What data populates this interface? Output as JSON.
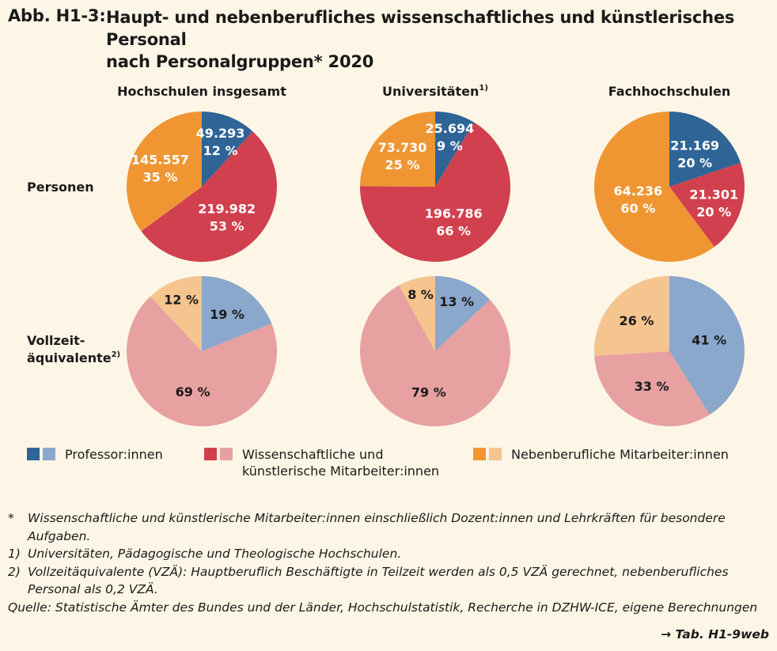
{
  "figure": {
    "label": "Abb. H1-3:",
    "title_line1": "Haupt- und nebenberufliches wissenschaftliches und künstlerisches Personal",
    "title_line2": "nach Personalgruppen* 2020"
  },
  "colors": {
    "prof_dark": "#2e6496",
    "prof_light": "#8aa7cc",
    "wiss_dark": "#d1404e",
    "wiss_light": "#e6a1a0",
    "neben_dark": "#ef9633",
    "neben_light": "#f5c48f"
  },
  "chart_data": [
    {
      "type": "pie",
      "column": "Hochschulen insgesamt",
      "row": "Personen",
      "slices": [
        {
          "category": "Professor:innen",
          "value": 49293,
          "value_label": "49.293",
          "percent_label": "12 %"
        },
        {
          "category": "Wissenschaftliche und künstlerische Mitarbeiter:innen",
          "value": 219982,
          "value_label": "219.982",
          "percent_label": "53 %"
        },
        {
          "category": "Nebenberufliche Mitarbeiter:innen",
          "value": 145557,
          "value_label": "145.557",
          "percent_label": "35 %"
        }
      ]
    },
    {
      "type": "pie",
      "column": "Universitäten",
      "column_note": "1)",
      "row": "Personen",
      "slices": [
        {
          "category": "Professor:innen",
          "value": 25694,
          "value_label": "25.694",
          "percent_label": "9 %"
        },
        {
          "category": "Wissenschaftliche und künstlerische Mitarbeiter:innen",
          "value": 196786,
          "value_label": "196.786",
          "percent_label": "66 %"
        },
        {
          "category": "Nebenberufliche Mitarbeiter:innen",
          "value": 73730,
          "value_label": "73.730",
          "percent_label": "25 %"
        }
      ]
    },
    {
      "type": "pie",
      "column": "Fachhochschulen",
      "row": "Personen",
      "slices": [
        {
          "category": "Professor:innen",
          "value": 21169,
          "value_label": "21.169",
          "percent_label": "20 %"
        },
        {
          "category": "Wissenschaftliche und künstlerische Mitarbeiter:innen",
          "value": 21301,
          "value_label": "21.301",
          "percent_label": "20 %"
        },
        {
          "category": "Nebenberufliche Mitarbeiter:innen",
          "value": 64236,
          "value_label": "64.236",
          "percent_label": "60 %"
        }
      ]
    },
    {
      "type": "pie",
      "column": "Hochschulen insgesamt",
      "row": "Vollzeitäquivalente",
      "slices": [
        {
          "category": "Professor:innen",
          "value": 19,
          "percent_label": "19 %"
        },
        {
          "category": "Wissenschaftliche und künstlerische Mitarbeiter:innen",
          "value": 69,
          "percent_label": "69 %"
        },
        {
          "category": "Nebenberufliche Mitarbeiter:innen",
          "value": 12,
          "percent_label": "12 %"
        }
      ]
    },
    {
      "type": "pie",
      "column": "Universitäten",
      "row": "Vollzeitäquivalente",
      "slices": [
        {
          "category": "Professor:innen",
          "value": 13,
          "percent_label": "13 %"
        },
        {
          "category": "Wissenschaftliche und künstlerische Mitarbeiter:innen",
          "value": 79,
          "percent_label": "79 %"
        },
        {
          "category": "Nebenberufliche Mitarbeiter:innen",
          "value": 8,
          "percent_label": "8 %"
        }
      ]
    },
    {
      "type": "pie",
      "column": "Fachhochschulen",
      "row": "Vollzeitäquivalente",
      "slices": [
        {
          "category": "Professor:innen",
          "value": 41,
          "percent_label": "41 %"
        },
        {
          "category": "Wissenschaftliche und künstlerische Mitarbeiter:innen",
          "value": 33,
          "percent_label": "33 %"
        },
        {
          "category": "Nebenberufliche Mitarbeiter:innen",
          "value": 26,
          "percent_label": "26 %"
        }
      ]
    }
  ],
  "row_labels": {
    "personen": "Personen",
    "vza_line1": "Vollzeit-",
    "vza_line2": "äquivalente",
    "vza_note": "2)"
  },
  "legend": {
    "prof": "Professor:innen",
    "wiss_line1": "Wissenschaftliche und",
    "wiss_line2": "künstlerische Mitarbeiter:innen",
    "neben": "Nebenberufliche Mitarbeiter:innen"
  },
  "notes": [
    {
      "marker": "*",
      "text": "Wissenschaftliche und künstlerische Mitarbeiter:innen einschließlich Dozent:innen und Lehrkräften für besondere Aufgaben."
    },
    {
      "marker": "1)",
      "text": "Universitäten, Pädagogische und Theologische Hochschulen."
    },
    {
      "marker": "2)",
      "text": "Vollzeitäquivalente (VZÄ): Hauptberuflich Beschäftigte in Teilzeit werden als 0,5 VZÄ gerechnet, nebenberufliches Personal als 0,2 VZÄ."
    }
  ],
  "source": "Quelle: Statistische Ämter des Bundes und der Länder, Hochschulstatistik, Recherche in DZHW-ICE, eigene Berechnungen",
  "table_ref": "→ Tab. H1-9web"
}
